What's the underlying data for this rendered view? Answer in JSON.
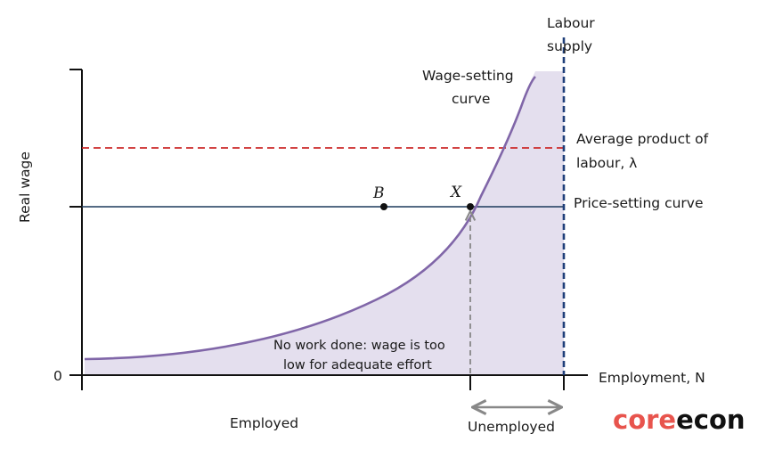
{
  "diagram": {
    "axes": {
      "y_label": "Real wage",
      "x_label": "Employment, N",
      "origin_label": "0"
    },
    "curves": {
      "labour_supply": "Labour supply",
      "labour_supply_line1": "Labour",
      "labour_supply_line2": "supply",
      "wage_setting": "Wage-setting curve",
      "wage_setting_line1": "Wage-setting",
      "wage_setting_line2": "curve",
      "average_product_line1": "Average product of",
      "average_product_line2": "labour, λ",
      "price_setting": "Price-setting curve"
    },
    "points": [
      {
        "label": "B"
      },
      {
        "label": "X"
      }
    ],
    "annotations": {
      "no_work_line1": "No work done: wage is too",
      "no_work_line2": "low for adequate effort",
      "employed": "Employed",
      "unemployed": "Unemployed"
    },
    "logo": {
      "part1": "core",
      "part2": "econ"
    },
    "colors": {
      "wage_setting_curve": "#8066a8",
      "shaded_region": "#e4dfee",
      "labour_supply_line": "#1f3f7a",
      "average_product_line": "#cc2a2a",
      "price_setting_line": "#1d3a5c",
      "arrow": "#888888",
      "logo_core": "#e8544d",
      "logo_econ": "#111111"
    }
  }
}
